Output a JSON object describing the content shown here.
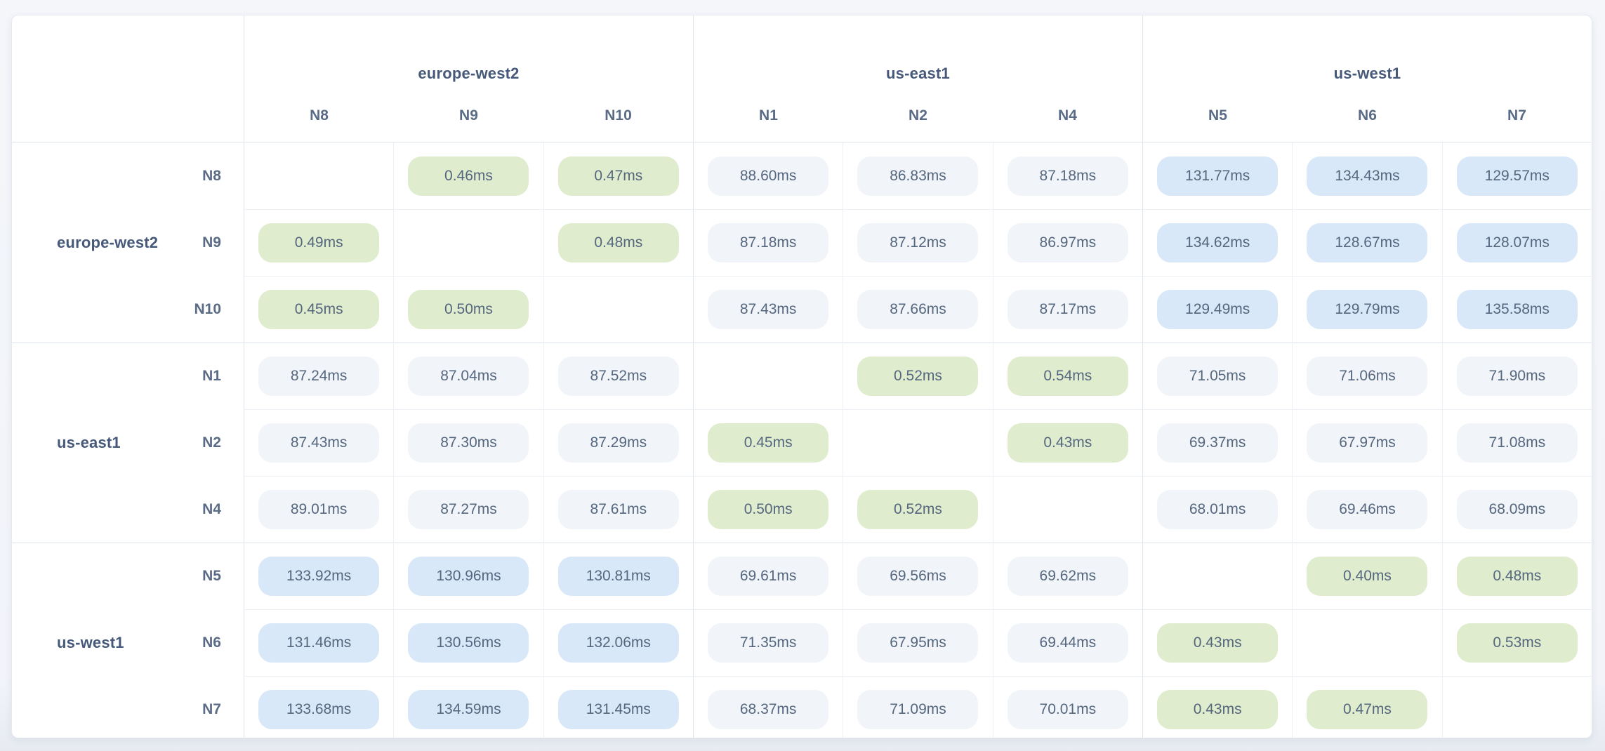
{
  "colors": {
    "low_latency_pill": "#dfeccd",
    "mid_latency_pill": "#f1f4f8",
    "high_latency_pill": "#d8e8f8",
    "pill_text": "#55677f",
    "node_header_text": "#5a6b85",
    "region_label_text": "#46597a"
  },
  "chart_data": {
    "type": "heatmap",
    "title": "",
    "unit": "ms",
    "thresholds": {
      "green_below_ms": 1,
      "blue_at_or_above_ms": 100
    },
    "column_groups": [
      {
        "region": "europe-west2",
        "nodes": [
          "N8",
          "N9",
          "N10"
        ]
      },
      {
        "region": "us-east1",
        "nodes": [
          "N1",
          "N2",
          "N4"
        ]
      },
      {
        "region": "us-west1",
        "nodes": [
          "N5",
          "N6",
          "N7"
        ]
      }
    ],
    "row_groups": [
      {
        "region": "europe-west2",
        "rows": [
          {
            "node": "N8",
            "values": [
              null,
              "0.46",
              "0.47",
              "88.60",
              "86.83",
              "87.18",
              "131.77",
              "134.43",
              "129.57"
            ]
          },
          {
            "node": "N9",
            "values": [
              "0.49",
              null,
              "0.48",
              "87.18",
              "87.12",
              "86.97",
              "134.62",
              "128.67",
              "128.07"
            ]
          },
          {
            "node": "N10",
            "values": [
              "0.45",
              "0.50",
              null,
              "87.43",
              "87.66",
              "87.17",
              "129.49",
              "129.79",
              "135.58"
            ]
          }
        ]
      },
      {
        "region": "us-east1",
        "rows": [
          {
            "node": "N1",
            "values": [
              "87.24",
              "87.04",
              "87.52",
              null,
              "0.52",
              "0.54",
              "71.05",
              "71.06",
              "71.90"
            ]
          },
          {
            "node": "N2",
            "values": [
              "87.43",
              "87.30",
              "87.29",
              "0.45",
              null,
              "0.43",
              "69.37",
              "67.97",
              "71.08"
            ]
          },
          {
            "node": "N4",
            "values": [
              "89.01",
              "87.27",
              "87.61",
              "0.50",
              "0.52",
              null,
              "68.01",
              "69.46",
              "68.09"
            ]
          }
        ]
      },
      {
        "region": "us-west1",
        "rows": [
          {
            "node": "N5",
            "values": [
              "133.92",
              "130.96",
              "130.81",
              "69.61",
              "69.56",
              "69.62",
              null,
              "0.40",
              "0.48"
            ]
          },
          {
            "node": "N6",
            "values": [
              "131.46",
              "130.56",
              "132.06",
              "71.35",
              "67.95",
              "69.44",
              "0.43",
              null,
              "0.53"
            ]
          },
          {
            "node": "N7",
            "values": [
              "133.68",
              "134.59",
              "131.45",
              "68.37",
              "71.09",
              "70.01",
              "0.43",
              "0.47",
              null
            ]
          }
        ]
      }
    ]
  }
}
